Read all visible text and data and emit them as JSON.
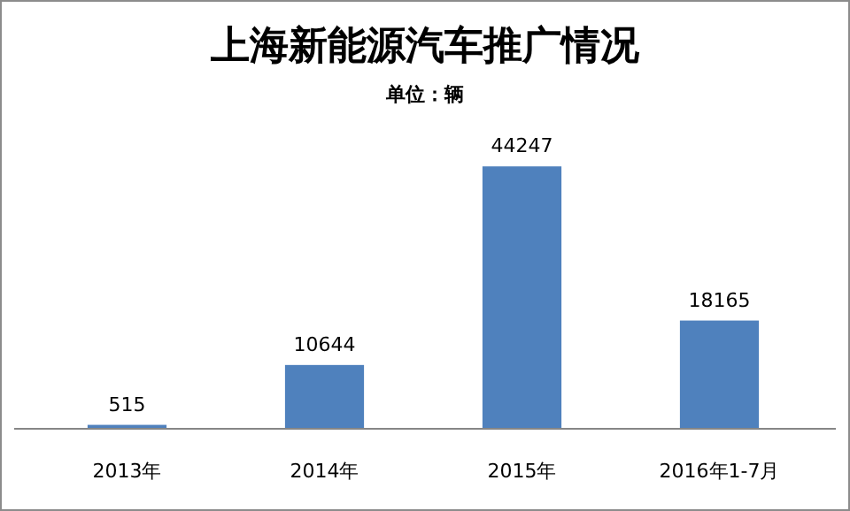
{
  "chart_data": {
    "type": "bar",
    "title": "上海新能源汽车推广情况",
    "subtitle": "单位：辆",
    "categories": [
      "2013年",
      "2014年",
      "2015年",
      "2016年1-7月"
    ],
    "values": [
      515,
      10644,
      44247,
      18165
    ],
    "color": "#4f81bd",
    "data_labels": true
  }
}
